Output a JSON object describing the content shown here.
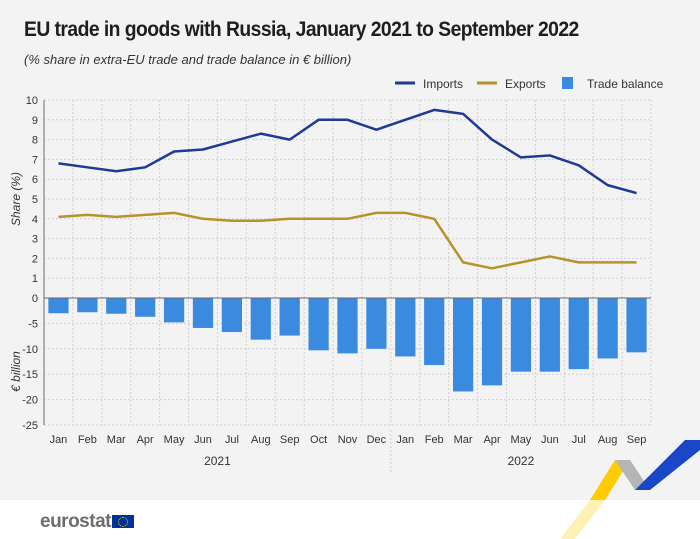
{
  "chart_data": {
    "type": "line+bar",
    "title": "EU trade in goods with Russia, January 2021 to September 2022",
    "subtitle": "(% share in extra-EU trade and trade balance in € billion)",
    "categories": [
      "Jan",
      "Feb",
      "Mar",
      "Apr",
      "May",
      "Jun",
      "Jul",
      "Aug",
      "Sep",
      "Oct",
      "Nov",
      "Dec",
      "Jan",
      "Feb",
      "Mar",
      "Apr",
      "May",
      "Jun",
      "Jul",
      "Aug",
      "Sep"
    ],
    "year_groups": [
      {
        "label": "2021",
        "count": 12
      },
      {
        "label": "2022",
        "count": 9
      }
    ],
    "upper_axis": {
      "label": "Share (%)",
      "ylim": [
        0,
        10
      ],
      "ticks": [
        "0",
        "1",
        "2",
        "3",
        "4",
        "5",
        "6",
        "7",
        "8",
        "9",
        "10"
      ]
    },
    "lower_axis": {
      "label": "€ billion",
      "ylim": [
        -25,
        0
      ],
      "ticks": [
        "-25",
        "-20",
        "-15",
        "-10",
        "-5"
      ]
    },
    "grid": true,
    "legend_position": "top-right",
    "series": [
      {
        "name": "Imports",
        "type": "line",
        "axis": "upper",
        "color": "#1f3a93",
        "values": [
          6.8,
          6.6,
          6.4,
          6.6,
          7.4,
          7.5,
          7.9,
          8.3,
          8.0,
          9.0,
          9.0,
          8.5,
          9.0,
          9.5,
          9.3,
          8.0,
          7.1,
          7.2,
          6.7,
          5.7,
          5.3
        ]
      },
      {
        "name": "Exports",
        "type": "line",
        "axis": "upper",
        "color": "#b8922a",
        "values": [
          4.1,
          4.2,
          4.1,
          4.2,
          4.3,
          4.0,
          3.9,
          3.9,
          4.0,
          4.0,
          4.0,
          4.3,
          4.3,
          4.0,
          1.8,
          1.5,
          1.8,
          2.1,
          1.8,
          1.8,
          1.8
        ]
      },
      {
        "name": "Trade balance",
        "type": "bar",
        "axis": "lower",
        "color": "#3a8be0",
        "values": [
          -3.0,
          -2.8,
          -3.1,
          -3.7,
          -4.8,
          -5.9,
          -6.7,
          -8.2,
          -7.4,
          -10.3,
          -10.9,
          -10.0,
          -11.5,
          -13.2,
          -18.4,
          -17.2,
          -14.5,
          -14.5,
          -14.0,
          -11.9,
          -10.7
        ]
      }
    ]
  },
  "footer": {
    "logo_text": "eurostat"
  }
}
